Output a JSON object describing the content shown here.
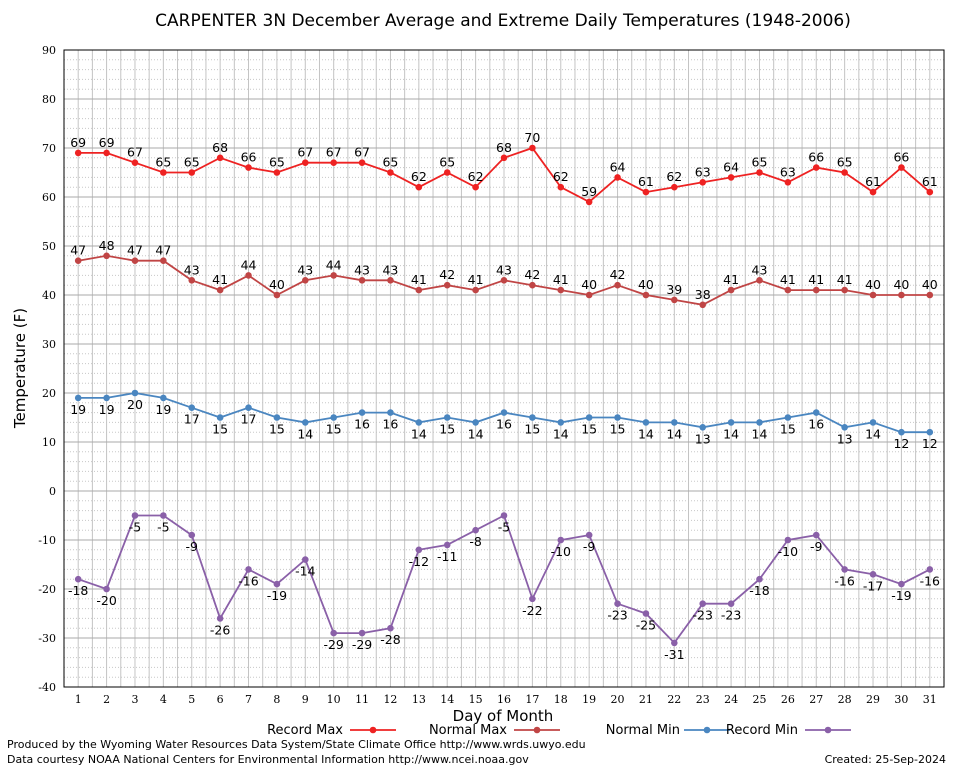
{
  "chart_data": {
    "type": "line",
    "title": "CARPENTER 3N December Average and Extreme Daily Temperatures (1948-2006)",
    "xlabel": "Day of Month",
    "ylabel": "Temperature (F)",
    "ylim": [
      -40,
      90
    ],
    "ytick_step": 10,
    "minor_step": 2,
    "grid": true,
    "legend_position": "bottom",
    "x": [
      1,
      2,
      3,
      4,
      5,
      6,
      7,
      8,
      9,
      10,
      11,
      12,
      13,
      14,
      15,
      16,
      17,
      18,
      19,
      20,
      21,
      22,
      23,
      24,
      25,
      26,
      27,
      28,
      29,
      30,
      31
    ],
    "series": [
      {
        "name": "Record Max",
        "color": "#ee2222",
        "label_pos": "above",
        "values": [
          69,
          69,
          67,
          65,
          65,
          68,
          66,
          65,
          67,
          67,
          67,
          65,
          62,
          65,
          62,
          68,
          70,
          62,
          59,
          64,
          61,
          62,
          63,
          64,
          65,
          63,
          66,
          65,
          61,
          66,
          61
        ]
      },
      {
        "name": "Normal Max",
        "color": "#c04545",
        "label_pos": "above",
        "values": [
          47,
          48,
          47,
          47,
          43,
          41,
          44,
          40,
          43,
          44,
          43,
          43,
          41,
          42,
          41,
          43,
          42,
          41,
          40,
          42,
          40,
          39,
          38,
          41,
          43,
          41,
          41,
          41,
          40,
          40,
          40
        ]
      },
      {
        "name": "Normal Min",
        "color": "#4a86c0",
        "label_pos": "below",
        "values": [
          19,
          19,
          20,
          19,
          17,
          15,
          17,
          15,
          14,
          15,
          16,
          16,
          14,
          15,
          14,
          16,
          15,
          14,
          15,
          15,
          14,
          14,
          13,
          14,
          14,
          15,
          16,
          13,
          14,
          12,
          12
        ]
      },
      {
        "name": "Record Min",
        "color": "#8a60a8",
        "label_pos": "below",
        "values": [
          -18,
          -20,
          -5,
          -5,
          -9,
          -26,
          -16,
          -19,
          -14,
          -29,
          -29,
          -28,
          -12,
          -11,
          -8,
          -5,
          -22,
          -10,
          -9,
          -23,
          -25,
          -31,
          -23,
          -23,
          -18,
          -10,
          -9,
          -16,
          -17,
          -19,
          -16
        ]
      }
    ]
  },
  "footer": {
    "line1": "Produced by the Wyoming Water Resources Data System/State Climate Office http://www.wrds.uwyo.edu",
    "line2": "Data courtesy NOAA National Centers for Environmental Information http://www.ncei.noaa.gov",
    "created": "Created:  25-Sep-2024"
  }
}
